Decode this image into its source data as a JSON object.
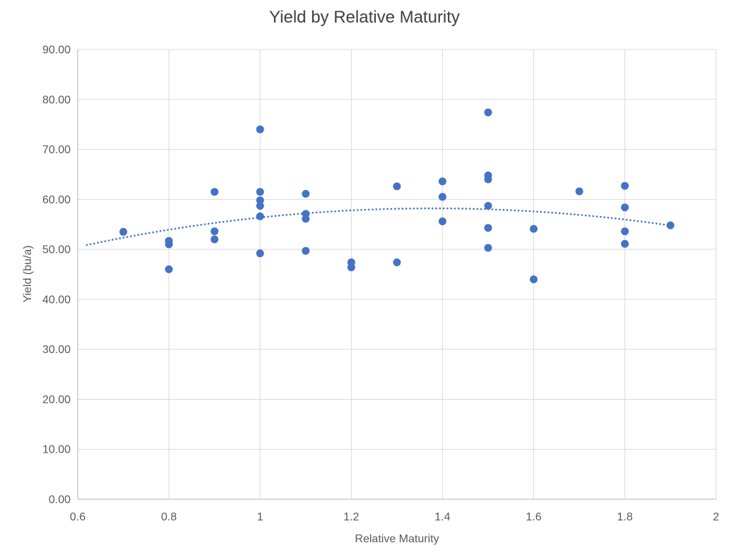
{
  "chart": {
    "title": "Yield by Relative Maturity",
    "x_axis": {
      "label": "Relative Maturity",
      "min": 0.6,
      "max": 2.0,
      "tick_step": 0.2,
      "tick_labels": [
        "0.6",
        "0.8",
        "1",
        "1.2",
        "1.4",
        "1.6",
        "1.8",
        "2"
      ]
    },
    "y_axis": {
      "label": "Yield (bu/a)",
      "min": 0,
      "max": 90,
      "tick_step": 10,
      "tick_labels": [
        "0.00",
        "10.00",
        "20.00",
        "30.00",
        "40.00",
        "50.00",
        "60.00",
        "70.00",
        "80.00",
        "90.00"
      ]
    },
    "colors": {
      "point": "#4472C4",
      "trendline": "#4472C4",
      "gridline": "#D9D9D9",
      "axis_line": "#BFBFBF",
      "title_text": "#404040",
      "label_text": "#595959",
      "background": "#FFFFFF"
    }
  },
  "chart_data": {
    "type": "scatter",
    "title": "Yield by Relative Maturity",
    "xlabel": "Relative Maturity",
    "ylabel": "Yield (bu/a)",
    "xlim": [
      0.6,
      2.0
    ],
    "ylim": [
      0,
      90
    ],
    "grid": true,
    "legend": false,
    "series": [
      {
        "name": "Yield",
        "points": [
          [
            0.7,
            53.5
          ],
          [
            0.8,
            51.7
          ],
          [
            0.8,
            51.0
          ],
          [
            0.8,
            46.0
          ],
          [
            0.9,
            61.5
          ],
          [
            0.9,
            53.6
          ],
          [
            0.9,
            52.0
          ],
          [
            1.0,
            74.0
          ],
          [
            1.0,
            61.5
          ],
          [
            1.0,
            59.8
          ],
          [
            1.0,
            58.7
          ],
          [
            1.0,
            56.6
          ],
          [
            1.0,
            49.2
          ],
          [
            1.1,
            61.1
          ],
          [
            1.1,
            57.1
          ],
          [
            1.1,
            56.1
          ],
          [
            1.1,
            49.7
          ],
          [
            1.2,
            47.4
          ],
          [
            1.2,
            46.4
          ],
          [
            1.3,
            62.6
          ],
          [
            1.3,
            47.4
          ],
          [
            1.4,
            63.6
          ],
          [
            1.4,
            60.5
          ],
          [
            1.4,
            55.6
          ],
          [
            1.5,
            77.4
          ],
          [
            1.5,
            64.8
          ],
          [
            1.5,
            64.0
          ],
          [
            1.5,
            58.7
          ],
          [
            1.5,
            54.3
          ],
          [
            1.5,
            50.3
          ],
          [
            1.6,
            54.1
          ],
          [
            1.6,
            44.0
          ],
          [
            1.7,
            61.6
          ],
          [
            1.8,
            62.7
          ],
          [
            1.8,
            58.4
          ],
          [
            1.8,
            53.6
          ],
          [
            1.8,
            51.1
          ],
          [
            1.9,
            54.8
          ]
        ]
      }
    ],
    "trendline": {
      "type": "polynomial",
      "order": 2,
      "style": "dotted",
      "a": -12.7,
      "h": 1.38,
      "k": 58.2,
      "x_start": 0.62,
      "x_end": 1.9
    }
  }
}
